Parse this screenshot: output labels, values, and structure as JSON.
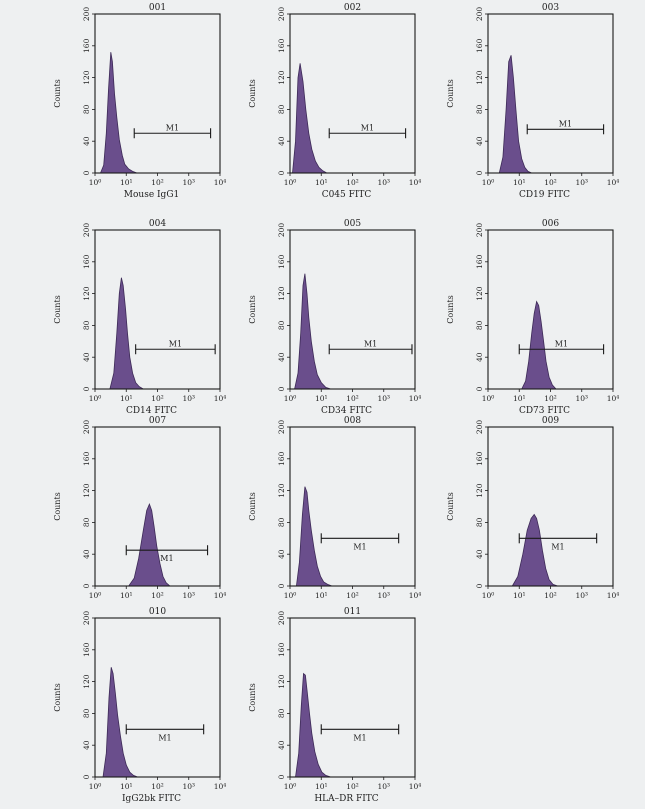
{
  "colors": {
    "fill": "#6a4e8c",
    "fill_dark": "#3d2a57",
    "frame": "#1a1a1a",
    "background": "#eef0f1"
  },
  "chart_data": [
    {
      "type": "area",
      "id": "001",
      "xlabel": "Mouse IgG1",
      "ylabel": "Counts",
      "x_scale": "log",
      "xlim": [
        1,
        10000
      ],
      "ylim": [
        0,
        200
      ],
      "x_ticks": [
        "10⁰",
        "10¹",
        "10²",
        "10³",
        "10⁴"
      ],
      "y_ticks": [
        "0",
        "40",
        "80",
        "120",
        "160",
        "200"
      ],
      "gate": {
        "label": "M1",
        "x_range": [
          18,
          5000
        ],
        "y": 50
      },
      "series": [
        {
          "x": [
            1.5,
            1.9,
            2.3,
            2.7,
            3.2,
            3.6,
            4.2,
            5,
            6,
            7.5,
            9,
            12,
            16,
            22
          ],
          "values": [
            0,
            10,
            50,
            105,
            152,
            140,
            100,
            70,
            42,
            22,
            11,
            5,
            2,
            0
          ]
        }
      ]
    },
    {
      "type": "area",
      "id": "002",
      "xlabel": "C045 FITC",
      "ylabel": "Counts",
      "x_scale": "log",
      "xlim": [
        1,
        10000
      ],
      "ylim": [
        0,
        200
      ],
      "x_ticks": [
        "10⁰",
        "10¹",
        "10²",
        "10³",
        "10⁴"
      ],
      "y_ticks": [
        "0",
        "40",
        "80",
        "120",
        "160",
        "200"
      ],
      "gate": {
        "label": "M1",
        "x_range": [
          18,
          5000
        ],
        "y": 50
      },
      "series": [
        {
          "x": [
            1.2,
            1.5,
            1.8,
            2.1,
            2.6,
            3.2,
            4,
            5,
            6.5,
            8.5,
            11,
            15
          ],
          "values": [
            0,
            40,
            120,
            138,
            115,
            80,
            50,
            30,
            15,
            7,
            3,
            0
          ]
        }
      ]
    },
    {
      "type": "area",
      "id": "003",
      "xlabel": "CD19 FITC",
      "ylabel": "Counts",
      "x_scale": "log",
      "xlim": [
        1,
        10000
      ],
      "ylim": [
        0,
        200
      ],
      "x_ticks": [
        "10⁰",
        "10¹",
        "10²",
        "10³",
        "10⁴"
      ],
      "y_ticks": [
        "0",
        "40",
        "80",
        "120",
        "160",
        "200"
      ],
      "gate": {
        "label": "M1",
        "x_range": [
          18,
          5000
        ],
        "y": 55
      },
      "series": [
        {
          "x": [
            2.3,
            3,
            3.8,
            4.6,
            5.5,
            6.5,
            7.8,
            9.5,
            12,
            15,
            19,
            25
          ],
          "values": [
            0,
            20,
            80,
            140,
            148,
            120,
            80,
            40,
            18,
            7,
            2,
            0
          ]
        }
      ]
    },
    {
      "type": "area",
      "id": "004",
      "xlabel": "CD14 FITC",
      "ylabel": "Counts",
      "x_scale": "log",
      "xlim": [
        1,
        10000
      ],
      "ylim": [
        0,
        200
      ],
      "x_ticks": [
        "10⁰",
        "10¹",
        "10²",
        "10³",
        "10⁴"
      ],
      "y_ticks": [
        "0",
        "40",
        "80",
        "120",
        "160",
        "200"
      ],
      "gate": {
        "label": "M1",
        "x_range": [
          20,
          7000
        ],
        "y": 50
      },
      "series": [
        {
          "x": [
            3,
            4,
            5,
            6,
            7,
            8,
            9.5,
            11,
            13,
            16,
            20,
            26,
            35
          ],
          "values": [
            0,
            20,
            70,
            120,
            140,
            130,
            100,
            70,
            40,
            20,
            8,
            3,
            0
          ]
        }
      ]
    },
    {
      "type": "area",
      "id": "005",
      "xlabel": "CD34 FITC",
      "ylabel": "Counts",
      "x_scale": "log",
      "xlim": [
        1,
        10000
      ],
      "ylim": [
        0,
        200
      ],
      "x_ticks": [
        "10⁰",
        "10¹",
        "10²",
        "10³",
        "10⁴"
      ],
      "y_ticks": [
        "0",
        "40",
        "80",
        "120",
        "160",
        "200"
      ],
      "gate": {
        "label": "M1",
        "x_range": [
          18,
          8000
        ],
        "y": 50
      },
      "series": [
        {
          "x": [
            1.4,
            1.8,
            2.2,
            2.6,
            3,
            3.5,
            4,
            4.8,
            6,
            7.5,
            10,
            14,
            20
          ],
          "values": [
            0,
            20,
            70,
            130,
            145,
            120,
            90,
            60,
            35,
            18,
            8,
            2,
            0
          ]
        }
      ]
    },
    {
      "type": "area",
      "id": "006",
      "xlabel": "CD73 FITC",
      "ylabel": "Counts",
      "x_scale": "log",
      "xlim": [
        1,
        10000
      ],
      "ylim": [
        0,
        200
      ],
      "x_ticks": [
        "10⁰",
        "10¹",
        "10²",
        "10³",
        "10⁴"
      ],
      "y_ticks": [
        "0",
        "40",
        "80",
        "120",
        "160",
        "200"
      ],
      "gate": {
        "label": "M1",
        "x_range": [
          10,
          5000
        ],
        "y": 50
      },
      "series": [
        {
          "x": [
            12,
            16,
            20,
            25,
            30,
            36,
            42,
            50,
            60,
            72,
            90,
            115,
            150
          ],
          "values": [
            0,
            10,
            35,
            70,
            95,
            110,
            105,
            85,
            60,
            35,
            15,
            5,
            0
          ]
        }
      ]
    },
    {
      "type": "area",
      "id": "007",
      "xlabel": "",
      "ylabel": "Counts",
      "x_scale": "log",
      "xlim": [
        1,
        10000
      ],
      "ylim": [
        0,
        200
      ],
      "x_ticks": [
        "10⁰",
        "10¹",
        "10²",
        "10³",
        "10⁴"
      ],
      "y_ticks": [
        "0",
        "40",
        "80",
        "120",
        "160",
        "200"
      ],
      "gate": {
        "label": "M1",
        "x_range": [
          10,
          4000
        ],
        "y": 45
      },
      "series": [
        {
          "x": [
            12,
            18,
            25,
            35,
            45,
            55,
            65,
            78,
            95,
            120,
            150,
            190,
            250
          ],
          "values": [
            0,
            10,
            35,
            70,
            95,
            103,
            95,
            75,
            50,
            28,
            12,
            4,
            0
          ]
        }
      ]
    },
    {
      "type": "area",
      "id": "008",
      "xlabel": "",
      "ylabel": "Counts",
      "x_scale": "log",
      "xlim": [
        1,
        10000
      ],
      "ylim": [
        0,
        200
      ],
      "x_ticks": [
        "10⁰",
        "10¹",
        "10²",
        "10³",
        "10⁴"
      ],
      "y_ticks": [
        "0",
        "40",
        "80",
        "120",
        "160",
        "200"
      ],
      "gate": {
        "label": "M1",
        "x_range": [
          10,
          3000
        ],
        "y": 60
      },
      "series": [
        {
          "x": [
            1.6,
            2,
            2.5,
            3,
            3.5,
            4,
            4.8,
            6,
            7.5,
            9.5,
            12,
            16,
            22
          ],
          "values": [
            0,
            30,
            90,
            125,
            118,
            95,
            70,
            45,
            25,
            12,
            5,
            2,
            0
          ]
        }
      ]
    },
    {
      "type": "area",
      "id": "009",
      "xlabel": "",
      "ylabel": "Counts",
      "x_scale": "log",
      "xlim": [
        1,
        10000
      ],
      "ylim": [
        0,
        200
      ],
      "x_ticks": [
        "10⁰",
        "10¹",
        "10²",
        "10³",
        "10⁴"
      ],
      "y_ticks": [
        "0",
        "40",
        "80",
        "120",
        "160",
        "200"
      ],
      "gate": {
        "label": "M1",
        "x_range": [
          10,
          3000
        ],
        "y": 60
      },
      "series": [
        {
          "x": [
            6,
            9,
            13,
            18,
            24,
            30,
            36,
            44,
            55,
            70,
            90,
            120,
            170
          ],
          "values": [
            0,
            12,
            40,
            70,
            85,
            90,
            85,
            70,
            45,
            22,
            8,
            2,
            0
          ]
        }
      ]
    },
    {
      "type": "area",
      "id": "010",
      "xlabel": "IgG2bk FITC",
      "ylabel": "Counts",
      "x_scale": "log",
      "xlim": [
        1,
        10000
      ],
      "ylim": [
        0,
        200
      ],
      "x_ticks": [
        "10⁰",
        "10¹",
        "10²",
        "10³",
        "10⁴"
      ],
      "y_ticks": [
        "0",
        "40",
        "80",
        "120",
        "160",
        "200"
      ],
      "gate": {
        "label": "M1",
        "x_range": [
          10,
          3000
        ],
        "y": 60
      },
      "series": [
        {
          "x": [
            1.8,
            2.3,
            2.8,
            3.3,
            3.8,
            4.5,
            5.3,
            6.5,
            8,
            10,
            13,
            17,
            23
          ],
          "values": [
            0,
            30,
            100,
            138,
            130,
            105,
            78,
            52,
            30,
            15,
            6,
            2,
            0
          ]
        }
      ]
    },
    {
      "type": "area",
      "id": "011",
      "xlabel": "HLA–DR FITC",
      "ylabel": "Counts",
      "x_scale": "log",
      "xlim": [
        1,
        10000
      ],
      "ylim": [
        0,
        200
      ],
      "x_ticks": [
        "10⁰",
        "10¹",
        "10²",
        "10³",
        "10⁴"
      ],
      "y_ticks": [
        "0",
        "40",
        "80",
        "120",
        "160",
        "200"
      ],
      "gate": {
        "label": "M1",
        "x_range": [
          10,
          3000
        ],
        "y": 60
      },
      "series": [
        {
          "x": [
            1.5,
            1.9,
            2.3,
            2.7,
            3.1,
            3.6,
            4.2,
            5,
            6.2,
            8,
            10.5,
            14,
            20
          ],
          "values": [
            0,
            30,
            90,
            130,
            128,
            105,
            80,
            55,
            32,
            16,
            6,
            2,
            0
          ]
        }
      ]
    }
  ]
}
